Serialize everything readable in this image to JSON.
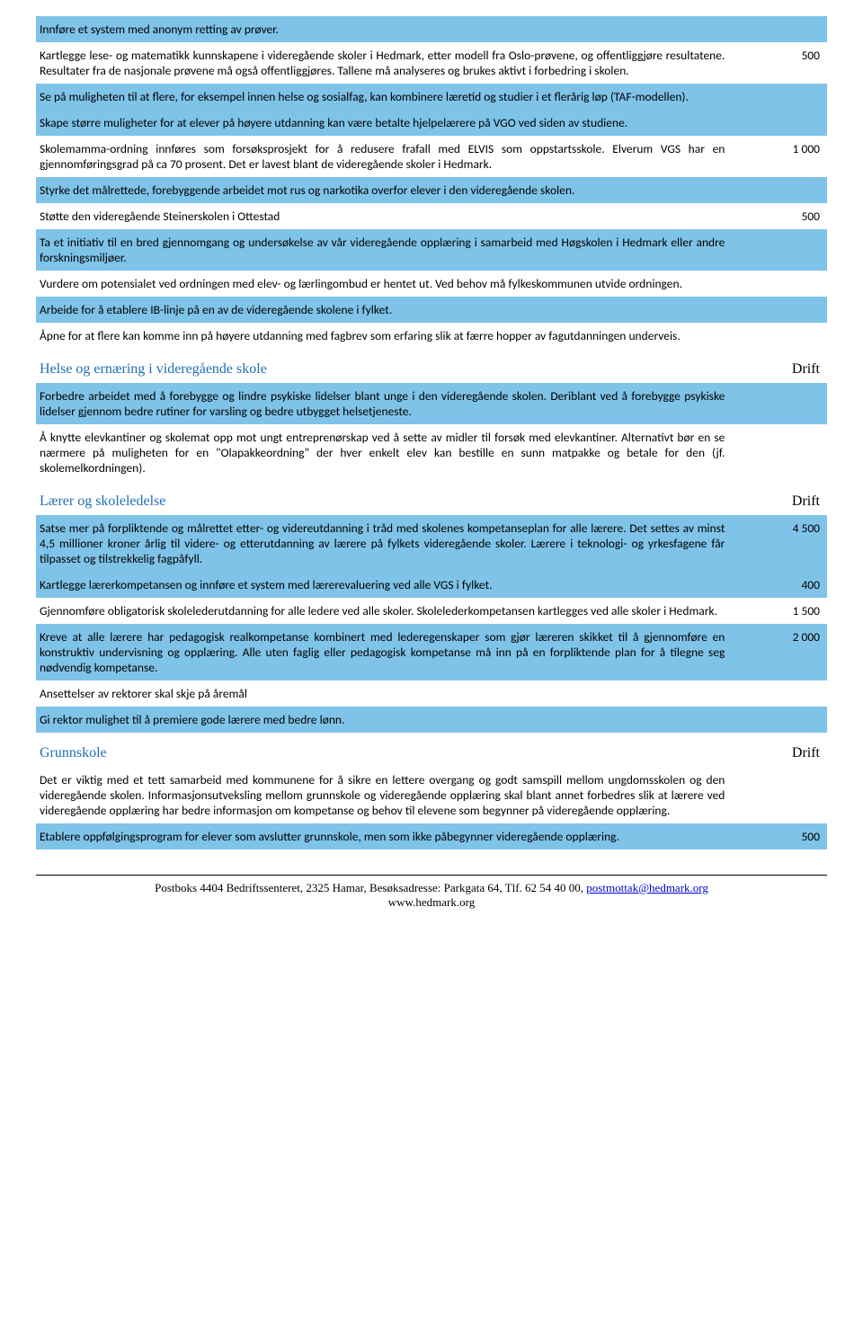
{
  "colors": {
    "highlight": "#7fc3e8",
    "link_blue": "#1f6fb2"
  },
  "rows": [
    {
      "hl": true,
      "text": "Innføre et system med anonym retting av prøver.",
      "val": ""
    },
    {
      "hl": false,
      "text": "Kartlegge lese- og matematikk kunnskapene i videregående skoler i Hedmark, etter modell fra Oslo-prøvene, og offentliggjøre resultatene. Resultater fra de nasjonale prøvene må også offentliggjøres. Tallene må analyseres og brukes aktivt i forbedring i skolen.",
      "val": "500"
    },
    {
      "hl": true,
      "text": "Se på muligheten til at flere, for eksempel innen helse og sosialfag, kan kombinere læretid og studier i et flerårig løp (TAF-modellen).",
      "val": ""
    },
    {
      "hl": true,
      "text": "Skape større muligheter for at elever på høyere utdanning kan være betalte hjelpelærere på VGO ved siden av studiene.",
      "val": ""
    },
    {
      "hl": false,
      "text": "Skolemamma-ordning innføres som forsøksprosjekt for å redusere frafall med ELVIS som oppstartsskole. Elverum VGS har en gjennomføringsgrad på ca 70 prosent. Det er lavest blant de videregående skoler i Hedmark.",
      "val": "1 000"
    },
    {
      "hl": true,
      "text": "Styrke det målrettede, forebyggende arbeidet mot rus og narkotika overfor elever i den videregående skolen.",
      "val": ""
    },
    {
      "hl": false,
      "text": "Støtte den videregående Steinerskolen i Ottestad",
      "val": "500"
    },
    {
      "hl": true,
      "text": "Ta et initiativ til en bred gjennomgang og undersøkelse av vår videregående opplæring i samarbeid med Høgskolen i Hedmark eller andre forskningsmiljøer.",
      "val": ""
    },
    {
      "hl": false,
      "text": "Vurdere om potensialet ved ordningen med elev- og lærlingombud er hentet ut. Ved behov må fylkeskommunen utvide ordningen.",
      "val": ""
    },
    {
      "hl": true,
      "text": "Arbeide for å etablere IB-linje på en av de videregående skolene i fylket.",
      "val": ""
    },
    {
      "hl": false,
      "text": "Åpne for at flere kan komme inn på høyere utdanning med fagbrev som erfaring slik at færre hopper av fagutdanningen underveis.",
      "val": ""
    }
  ],
  "section2_title": "Helse og ernæring i videregående skole",
  "section2_val": "Drift",
  "rows2": [
    {
      "hl": true,
      "text": "Forbedre arbeidet med å forebygge og lindre psykiske lidelser blant unge i den videregående skolen. Deriblant ved å forebygge psykiske lidelser gjennom bedre rutiner for varsling og bedre utbygget helsetjeneste.",
      "val": ""
    },
    {
      "hl": false,
      "text": "Å knytte elevkantiner og skolemat opp mot ungt entreprenørskap ved å sette av midler til forsøk med elevkantiner. Alternativt bør en se nærmere på muligheten for en \"Olapakkeordning\" der hver enkelt elev kan bestille en sunn matpakke og betale for den (jf. skolemelkordningen).",
      "val": ""
    }
  ],
  "section3_title": "Lærer og skoleledelse",
  "section3_val": "Drift",
  "rows3": [
    {
      "hl": true,
      "text": "Satse mer på forpliktende og målrettet etter- og videreutdanning i tråd med skolenes kompetanseplan for alle lærere. Det settes av minst 4,5 millioner kroner årlig til videre- og etterutdanning av lærere på fylkets videregående skoler. Lærere i teknologi- og yrkesfagene får tilpasset og tilstrekkelig fagpåfyll.",
      "val": "4 500"
    },
    {
      "hl": true,
      "text": "Kartlegge lærerkompetansen og innføre et system med lærerevaluering ved alle VGS i fylket.",
      "val": "400"
    },
    {
      "hl": false,
      "text": "Gjennomføre obligatorisk skolelederutdanning for alle ledere ved alle skoler. Skolelederkompetansen kartlegges ved alle skoler i Hedmark.",
      "val": "1 500"
    },
    {
      "hl": true,
      "text": "Kreve at alle lærere har pedagogisk realkompetanse kombinert med lederegenskaper som gjør læreren skikket til å gjennomføre en konstruktiv undervisning og opplæring. Alle uten faglig eller pedagogisk kompetanse må inn på en forpliktende plan for å tilegne seg nødvendig kompetanse.",
      "val": "2 000"
    },
    {
      "hl": false,
      "text": "Ansettelser av rektorer skal skje på åremål",
      "val": ""
    },
    {
      "hl": true,
      "text": "Gi rektor mulighet til å premiere gode lærere med bedre lønn.",
      "val": ""
    }
  ],
  "section4_title": "Grunnskole",
  "section4_val": "Drift",
  "rows4": [
    {
      "hl": false,
      "text": "Det er viktig med et tett samarbeid med kommunene for å sikre en lettere overgang og godt samspill mellom ungdomsskolen og den videregående skolen. Informasjonsutveksling mellom grunnskole og videregående opplæring skal blant annet forbedres slik at lærere ved videregående opplæring har bedre informasjon om kompetanse og behov til elevene som begynner på videregående opplæring.",
      "val": ""
    },
    {
      "hl": true,
      "text": "Etablere oppfølgingsprogram for elever som avslutter grunnskole, men som ikke påbegynner videregående opplæring.",
      "val": "500"
    }
  ],
  "footer_line1": "Postboks 4404 Bedriftssenteret, 2325 Hamar, Besøksadresse: Parkgata 64, Tlf. 62 54 40 00, ",
  "footer_email": "postmottak@hedmark.org",
  "footer_line2": "www.hedmark.org"
}
